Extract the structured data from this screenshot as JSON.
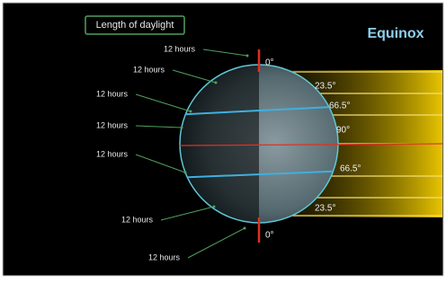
{
  "header": {
    "label": "Length of daylight",
    "title": "Equinox"
  },
  "hours": [
    "12 hours",
    "12 hours",
    "12 hours",
    "12 hours",
    "12 hours",
    "12 hours",
    "12 hours"
  ],
  "angles": [
    "0°",
    "23.5°",
    "66.5°",
    "90°",
    "66.5°",
    "23.5°",
    "0°"
  ]
}
